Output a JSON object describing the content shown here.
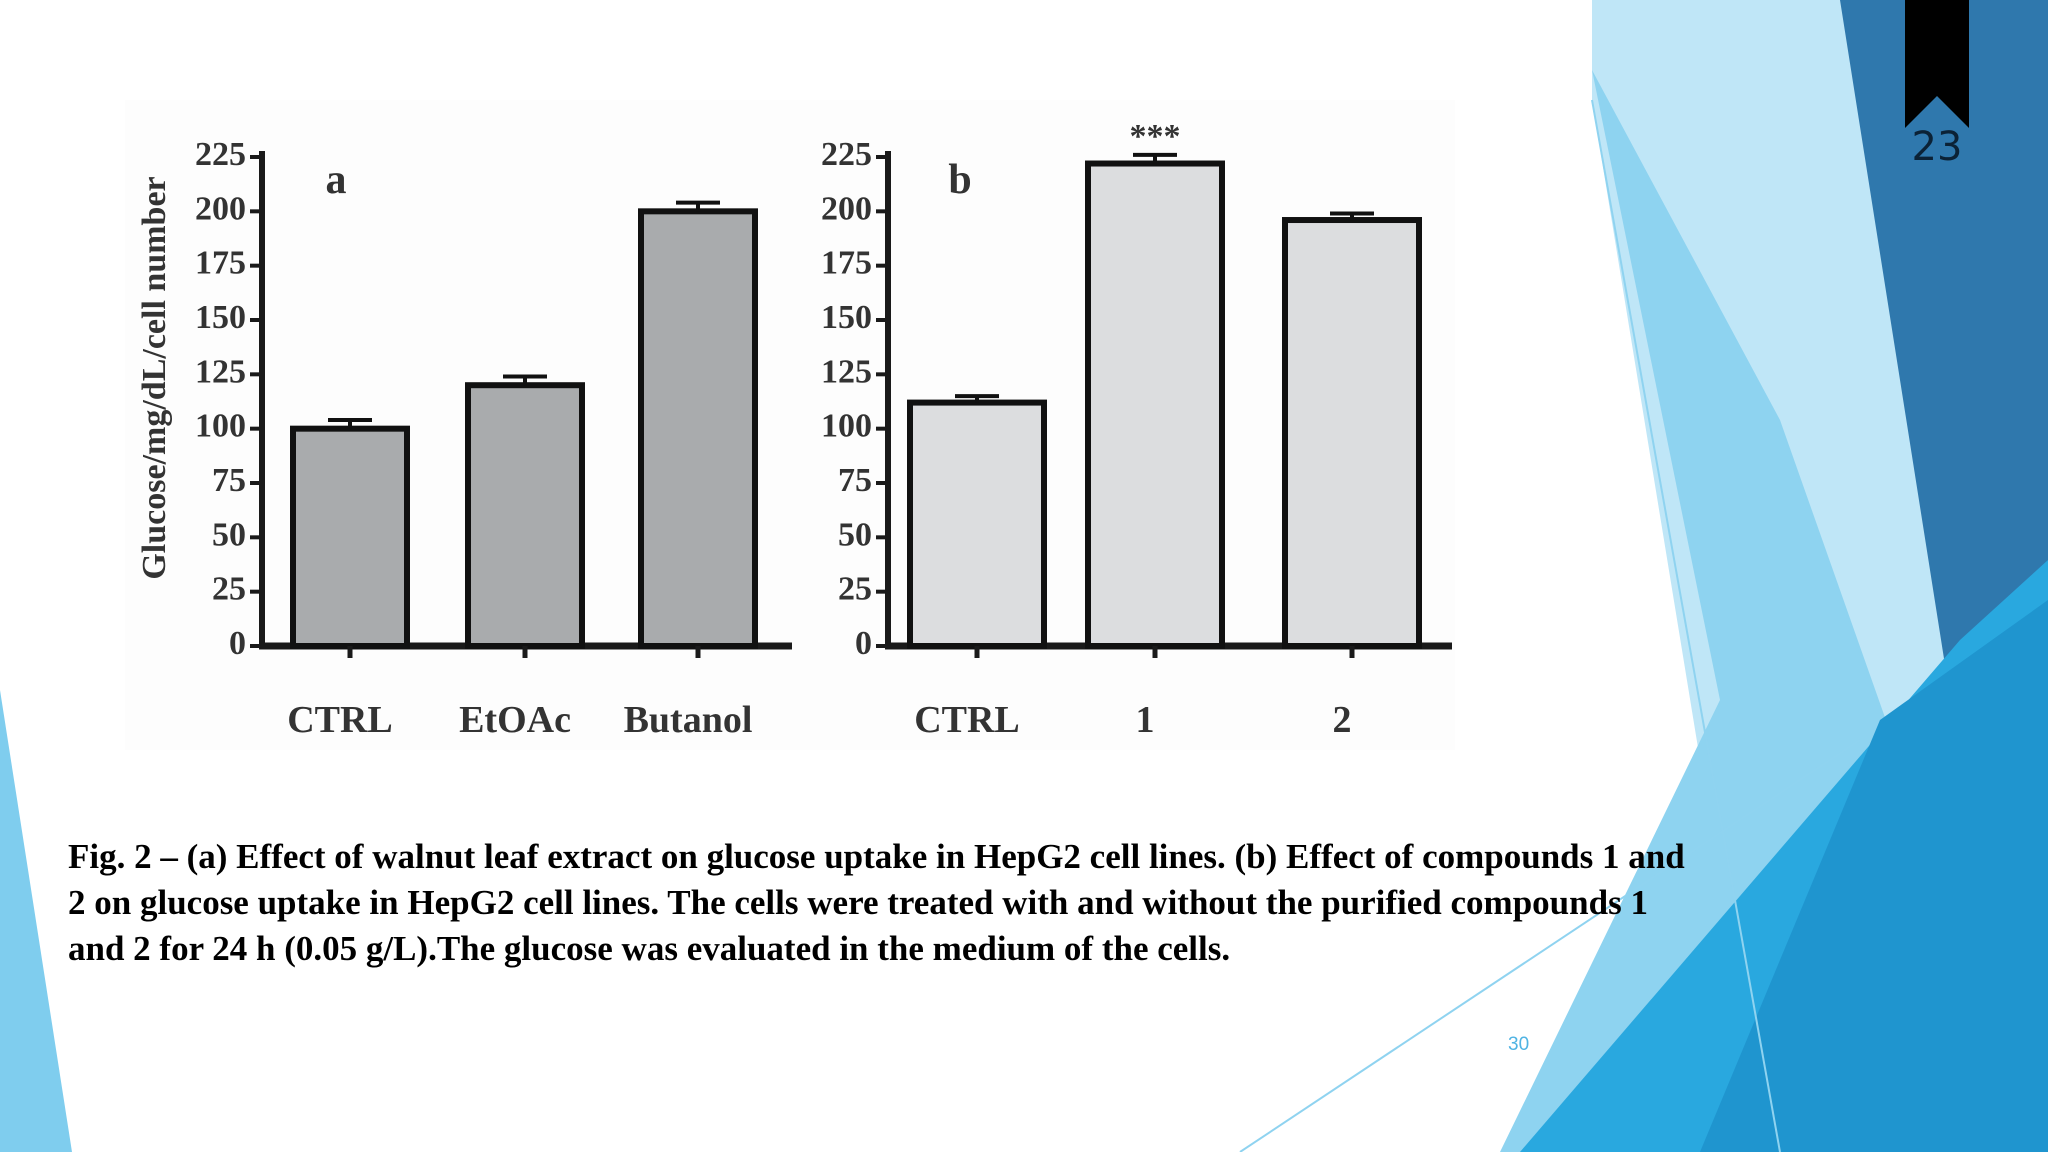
{
  "slide": {
    "badge_number": "23",
    "slide_number": "30",
    "caption": "Fig. 2 – (a) Effect of walnut leaf extract on glucose uptake in HepG2 cell lines. (b) Effect of compounds 1 and 2 on glucose uptake in HepG2 cell lines. The cells were treated with and without the purified compounds 1 and 2 for 24 h (0.05 g/L).The glucose was evaluated in the medium of the cells.",
    "colors": {
      "accent_blue": "#29a8df",
      "light_blue": "#8fd3f0",
      "dark_blue": "#2f78ad"
    }
  },
  "chart_data": [
    {
      "type": "bar",
      "panel_label": "a",
      "ylabel": "Glucose/mg/dL/cell number",
      "xlabel": "",
      "ylim": [
        0,
        225
      ],
      "yticks": [
        0,
        25,
        50,
        75,
        100,
        125,
        150,
        175,
        200,
        225
      ],
      "categories": [
        "CTRL",
        "EtOAc",
        "Butanol"
      ],
      "values": [
        100,
        120,
        200
      ],
      "errors": [
        4,
        4,
        4
      ],
      "annotations": [
        "",
        "",
        ""
      ],
      "bar_color": "#a9abad",
      "grid": false
    },
    {
      "type": "bar",
      "panel_label": "b",
      "ylabel": "",
      "xlabel": "",
      "ylim": [
        0,
        225
      ],
      "yticks": [
        0,
        25,
        50,
        75,
        100,
        125,
        150,
        175,
        200,
        225
      ],
      "categories": [
        "CTRL",
        "1",
        "2"
      ],
      "values": [
        112,
        222,
        196
      ],
      "errors": [
        3,
        4,
        3
      ],
      "annotations": [
        "",
        "***",
        ""
      ],
      "bar_color": "#dcdddf",
      "grid": false
    }
  ]
}
